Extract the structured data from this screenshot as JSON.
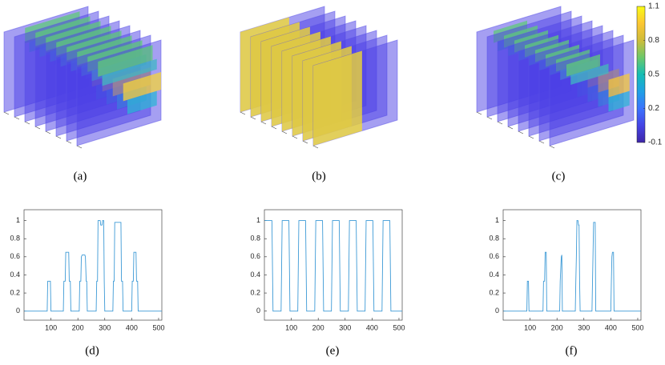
{
  "captions": [
    "(a)",
    "(b)",
    "(c)",
    "(d)",
    "(e)",
    "(f)"
  ],
  "chart_data": [
    {
      "type": "line",
      "color": "#3d9ad6",
      "xlim": [
        0,
        512
      ],
      "ylim": [
        -0.1,
        1.12
      ],
      "xticks": [
        100,
        200,
        300,
        400,
        500
      ],
      "yticks": [
        0,
        0.2,
        0.4,
        0.6,
        0.8,
        1
      ],
      "x": [
        1,
        86,
        88,
        98,
        100,
        146,
        148,
        153,
        155,
        166,
        168,
        172,
        174,
        205,
        207,
        211,
        213,
        216,
        226,
        228,
        231,
        233,
        235,
        268,
        270,
        273,
        275,
        283,
        285,
        290,
        292,
        296,
        298,
        300,
        330,
        332,
        335,
        337,
        360,
        362,
        366,
        368,
        400,
        402,
        406,
        408,
        416,
        418,
        422,
        424,
        512
      ],
      "values": [
        0,
        0,
        0.33,
        0.33,
        0,
        0,
        0.33,
        0.33,
        0.65,
        0.65,
        0.33,
        0.33,
        0,
        0,
        0.33,
        0.33,
        0.6,
        0.62,
        0.62,
        0.6,
        0.33,
        0.33,
        0,
        0,
        0.33,
        0.33,
        1,
        1,
        0.95,
        0.95,
        1,
        1,
        0.33,
        0,
        0,
        0.33,
        0.33,
        0.98,
        0.98,
        0.33,
        0.33,
        0,
        0,
        0.33,
        0.33,
        0.65,
        0.65,
        0.33,
        0.33,
        0,
        0
      ]
    },
    {
      "type": "line",
      "color": "#3d9ad6",
      "xlim": [
        0,
        512
      ],
      "ylim": [
        -0.1,
        1.12
      ],
      "xticks": [
        100,
        200,
        300,
        400,
        500
      ],
      "yticks": [
        0,
        0.2,
        0.4,
        0.6,
        0.8,
        1
      ],
      "x": [
        1,
        28,
        32,
        62,
        66,
        91,
        95,
        124,
        128,
        153,
        157,
        187,
        191,
        216,
        220,
        249,
        253,
        278,
        282,
        312,
        316,
        341,
        345,
        374,
        378,
        403,
        407,
        437,
        441,
        466,
        470,
        512
      ],
      "values": [
        1,
        1,
        0,
        0,
        1,
        1,
        0,
        0,
        1,
        1,
        0,
        0,
        1,
        1,
        0,
        0,
        1,
        1,
        0,
        0,
        1,
        1,
        0,
        0,
        1,
        1,
        0,
        0,
        1,
        1,
        0,
        0
      ]
    },
    {
      "type": "line",
      "color": "#3d9ad6",
      "xlim": [
        0,
        512
      ],
      "ylim": [
        -0.1,
        1.12
      ],
      "xticks": [
        100,
        200,
        300,
        400,
        500
      ],
      "yticks": [
        0,
        0.2,
        0.4,
        0.6,
        0.8,
        1
      ],
      "x": [
        1,
        88,
        90,
        94,
        96,
        148,
        150,
        154,
        156,
        160,
        162,
        210,
        212,
        216,
        218,
        220,
        268,
        270,
        272,
        274,
        278,
        280,
        282,
        284,
        286,
        330,
        332,
        336,
        342,
        344,
        400,
        402,
        404,
        406,
        410,
        412,
        512
      ],
      "values": [
        0,
        0,
        0.33,
        0.33,
        0,
        0,
        0.33,
        0.33,
        0.65,
        0.65,
        0,
        0,
        0.33,
        0.6,
        0.62,
        0,
        0,
        0.33,
        0.6,
        1,
        1,
        0.95,
        0.95,
        0.33,
        0,
        0,
        0.33,
        0.98,
        0.98,
        0,
        0,
        0.33,
        0.6,
        0.65,
        0.65,
        0,
        0
      ]
    },
    {
      "type": "colorbar",
      "ylim": [
        -0.1,
        1.1
      ],
      "yticks": [
        1.1,
        0.8,
        0.5,
        0.2,
        -0.1
      ],
      "colors": [
        "#3e26a8",
        "#4544e5",
        "#3b73fd",
        "#1fa0e5",
        "#14bdb4",
        "#6cc86a",
        "#cebc3a",
        "#fcc632",
        "#f9fb15"
      ]
    }
  ]
}
